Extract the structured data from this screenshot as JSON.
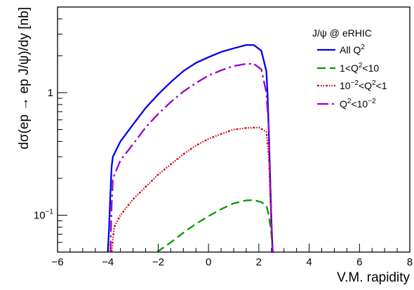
{
  "chart_data": {
    "type": "line",
    "title": "",
    "xlabel": "V.M. rapidity",
    "ylabel": "dσ(ep → ep J/ψ)/dy [nb]",
    "x_scale": "linear",
    "y_scale": "log",
    "xlim": [
      -6,
      8
    ],
    "ylim": [
      0.05,
      5
    ],
    "x_ticks": [
      -6,
      -4,
      -2,
      0,
      2,
      4,
      6,
      8
    ],
    "x_tick_labels": [
      "−6",
      "−4",
      "−2",
      "0",
      "2",
      "4",
      "6",
      "8"
    ],
    "y_ticks": [
      0.1,
      1
    ],
    "y_tick_labels": [
      {
        "base": "10",
        "exp": "−1"
      },
      {
        "base": "1",
        "exp": ""
      }
    ],
    "grid": false,
    "legend": {
      "placement": "top-right",
      "header": "J/ψ @ eRHIC",
      "entries": [
        {
          "series": 0,
          "parts": [
            {
              "t": "All Q"
            },
            {
              "t": "2",
              "sup": true
            }
          ]
        },
        {
          "series": 1,
          "parts": [
            {
              "t": "1<Q"
            },
            {
              "t": "2",
              "sup": true
            },
            {
              "t": "<10"
            }
          ]
        },
        {
          "series": 2,
          "parts": [
            {
              "t": "10"
            },
            {
              "t": "−2",
              "sup": true
            },
            {
              "t": "<Q"
            },
            {
              "t": "2",
              "sup": true
            },
            {
              "t": "<1"
            }
          ]
        },
        {
          "series": 3,
          "parts": [
            {
              "t": "Q"
            },
            {
              "t": "2",
              "sup": true
            },
            {
              "t": "<10"
            },
            {
              "t": "−2",
              "sup": true
            }
          ]
        }
      ]
    },
    "series": [
      {
        "color": "#0000ee",
        "dash": "solid",
        "x": [
          -4.0,
          -3.95,
          -3.9,
          -3.85,
          -3.8,
          -3.5,
          -3.0,
          -2.5,
          -2.0,
          -1.5,
          -1.0,
          -0.5,
          0.0,
          0.5,
          1.0,
          1.5,
          1.8,
          2.1,
          2.3,
          2.35,
          2.4,
          2.45,
          2.5,
          2.55,
          2.6
        ],
        "y": [
          0.05,
          0.08,
          0.15,
          0.25,
          0.3,
          0.4,
          0.55,
          0.75,
          0.97,
          1.22,
          1.5,
          1.75,
          1.95,
          2.15,
          2.3,
          2.45,
          2.45,
          2.2,
          1.5,
          0.95,
          0.45,
          0.2,
          0.09,
          0.05,
          0.045
        ]
      },
      {
        "color": "#009900",
        "dash": "dashed",
        "x": [
          -2.05,
          -1.5,
          -1.0,
          -0.5,
          0.0,
          0.5,
          1.0,
          1.5,
          1.8,
          2.1,
          2.3,
          2.4,
          2.5,
          2.55
        ],
        "y": [
          0.05,
          0.06,
          0.072,
          0.085,
          0.098,
          0.112,
          0.125,
          0.132,
          0.133,
          0.128,
          0.12,
          0.1,
          0.07,
          0.05
        ]
      },
      {
        "color": "#cc0000",
        "dash": "dash-dot-dot",
        "x": [
          -3.85,
          -3.75,
          -3.5,
          -3.0,
          -2.5,
          -2.0,
          -1.5,
          -1.0,
          -0.5,
          0.0,
          0.5,
          1.0,
          1.5,
          2.0,
          2.3,
          2.4,
          2.45,
          2.5,
          2.55
        ],
        "y": [
          0.05,
          0.08,
          0.1,
          0.135,
          0.17,
          0.215,
          0.26,
          0.315,
          0.37,
          0.42,
          0.46,
          0.5,
          0.515,
          0.52,
          0.48,
          0.3,
          0.15,
          0.08,
          0.05
        ]
      },
      {
        "color": "#9900cc",
        "dash": "long-dash-dot",
        "x": [
          -3.9,
          -3.85,
          -3.8,
          -3.5,
          -3.0,
          -2.5,
          -2.0,
          -1.5,
          -1.0,
          -0.5,
          0.0,
          0.5,
          1.0,
          1.5,
          1.8,
          2.1,
          2.3,
          2.4,
          2.45,
          2.5,
          2.55
        ],
        "y": [
          0.05,
          0.12,
          0.2,
          0.28,
          0.38,
          0.52,
          0.67,
          0.84,
          1.02,
          1.2,
          1.38,
          1.52,
          1.65,
          1.72,
          1.72,
          1.55,
          1.0,
          0.5,
          0.2,
          0.09,
          0.05
        ]
      }
    ]
  }
}
